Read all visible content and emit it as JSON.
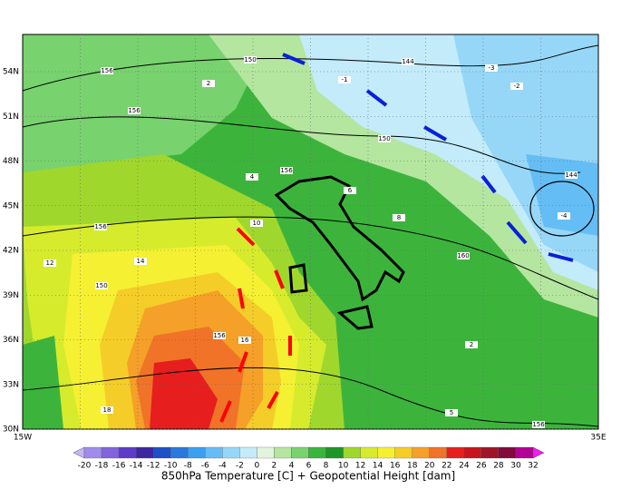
{
  "map": {
    "lat_labels": [
      "54N",
      "51N",
      "48N",
      "45N",
      "42N",
      "39N",
      "36N",
      "33N",
      "30N"
    ],
    "lon_labels": [
      "15W",
      "35E"
    ],
    "contour_labels": [
      150,
      156,
      156,
      144,
      150,
      156,
      156,
      150,
      156,
      160,
      144,
      156,
      -1,
      -2,
      -3,
      -4,
      2,
      4,
      6,
      8,
      10,
      12,
      14,
      16,
      18,
      2,
      5
    ]
  },
  "colorbar": {
    "title": "850hPa Temperature [C] + Geopotential Height [dam]",
    "ticks": [
      -20,
      -18,
      -16,
      -14,
      -12,
      -10,
      -8,
      -6,
      -4,
      -2,
      0,
      2,
      4,
      6,
      8,
      10,
      12,
      14,
      16,
      18,
      20,
      22,
      24,
      26,
      28,
      30,
      32
    ],
    "colors": [
      "#c8b4f5",
      "#a08ceb",
      "#8264dc",
      "#5f3cc8",
      "#3c28a0",
      "#1e50c8",
      "#2a78dc",
      "#3ca0f0",
      "#64bef5",
      "#96d7f8",
      "#c3ebfa",
      "#e1f5dc",
      "#b4e6a0",
      "#78d26e",
      "#3cb43c",
      "#1e9628",
      "#a0d72d",
      "#d7eb2d",
      "#f5f032",
      "#f5cd28",
      "#f5a028",
      "#f07328",
      "#e61e1e",
      "#c8141e",
      "#a01428",
      "#820a3c",
      "#b40096",
      "#f01ef0"
    ]
  }
}
